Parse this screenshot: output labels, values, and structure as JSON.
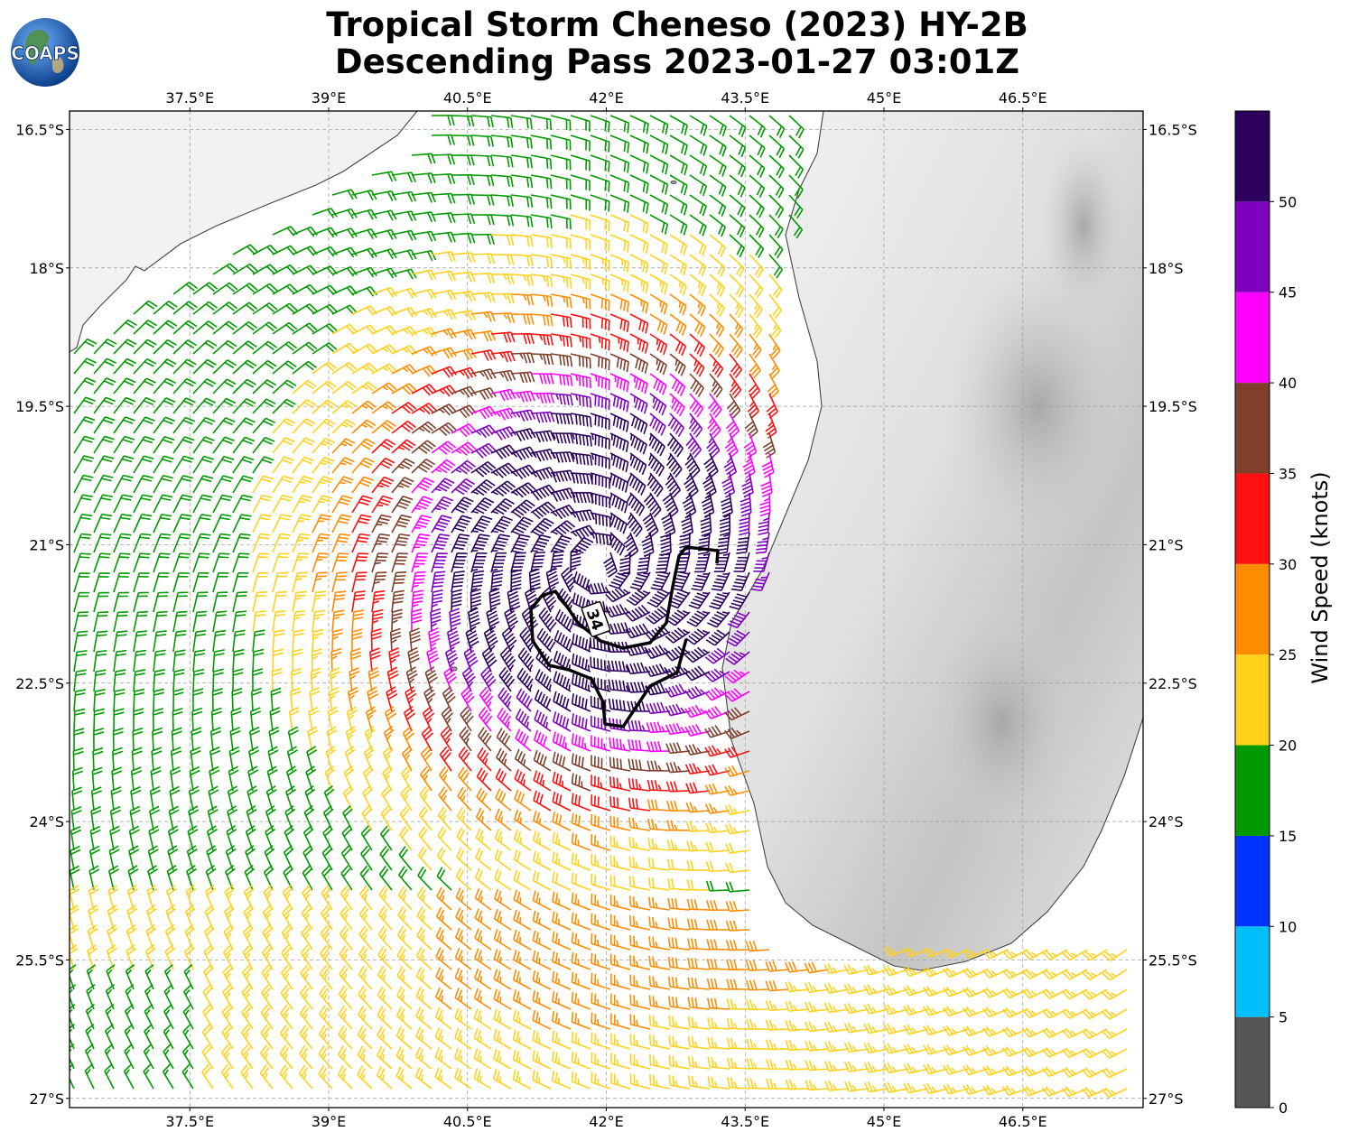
{
  "title": {
    "line1": "Tropical Storm Cheneso (2023) HY-2B",
    "line2": "Descending Pass 2023-01-27 03:01Z"
  },
  "logo_text": "COAPS",
  "map": {
    "lon_ticks": [
      "37.5°E",
      "39°E",
      "40.5°E",
      "42°E",
      "43.5°E",
      "45°E",
      "46.5°E"
    ],
    "lat_ticks": [
      "16.5°S",
      "18°S",
      "19.5°S",
      "21°S",
      "22.5°S",
      "24°S",
      "25.5°S",
      "27°S"
    ],
    "lon_range": [
      36.2,
      47.8
    ],
    "lat_range": [
      -27.1,
      -16.3
    ],
    "storm_center": {
      "lon": 41.9,
      "lat": -21.2
    },
    "contour_label": "34",
    "gridlines": true
  },
  "colorbar": {
    "label": "Wind Speed (knots)",
    "ticks": [
      "0",
      "5",
      "10",
      "15",
      "20",
      "25",
      "30",
      "35",
      "40",
      "45",
      "50"
    ],
    "bins": [
      {
        "min": 0,
        "max": 5,
        "color": "#555555"
      },
      {
        "min": 5,
        "max": 10,
        "color": "#00bfff"
      },
      {
        "min": 10,
        "max": 15,
        "color": "#0033ff"
      },
      {
        "min": 15,
        "max": 20,
        "color": "#009900"
      },
      {
        "min": 20,
        "max": 25,
        "color": "#ffd11a"
      },
      {
        "min": 25,
        "max": 30,
        "color": "#ff8c00"
      },
      {
        "min": 30,
        "max": 35,
        "color": "#ff1010"
      },
      {
        "min": 35,
        "max": 40,
        "color": "#7f3f2a"
      },
      {
        "min": 40,
        "max": 45,
        "color": "#ff00ff"
      },
      {
        "min": 45,
        "max": 50,
        "color": "#8000c0"
      },
      {
        "min": 50,
        "max": 55,
        "color": "#2c005c"
      }
    ]
  }
}
